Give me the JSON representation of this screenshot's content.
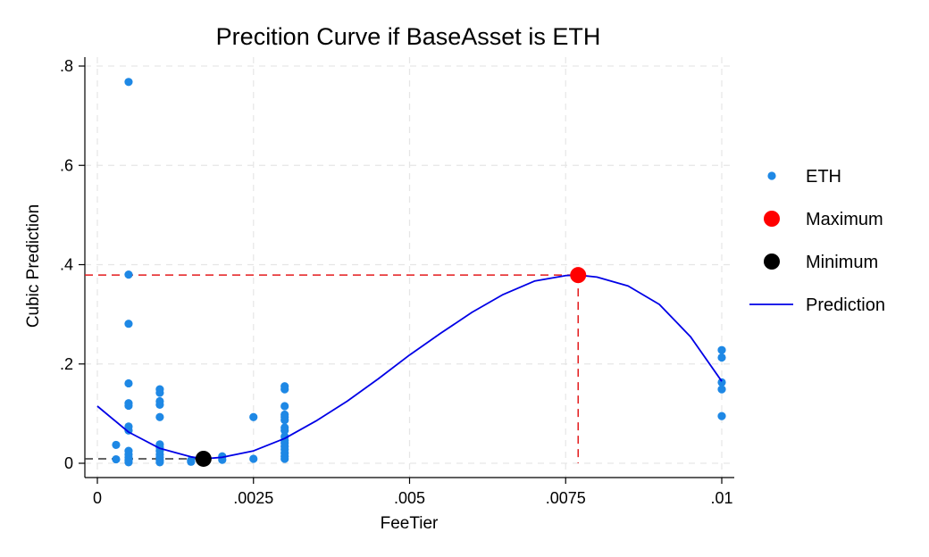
{
  "chart_data": {
    "type": "scatter",
    "title": "Precition Curve if BaseAsset is ETH",
    "xlabel": "FeeTier",
    "ylabel": "Cubic Prediction",
    "xlim": [
      0,
      0.01
    ],
    "ylim": [
      0,
      0.8
    ],
    "x_ticks": [
      0,
      0.0025,
      0.005,
      0.0075,
      0.01
    ],
    "x_tick_labels": [
      "0",
      ".0025",
      ".005",
      ".0075",
      ".01"
    ],
    "y_ticks": [
      0,
      0.2,
      0.4,
      0.6,
      0.8
    ],
    "y_tick_labels": [
      "0",
      ".2",
      ".4",
      ".6",
      ".8"
    ],
    "grid": true,
    "legend_position": "right",
    "series": [
      {
        "name": "ETH",
        "kind": "scatter",
        "color": "#1e88e5",
        "points": [
          [
            0.0003,
            0.037
          ],
          [
            0.0003,
            0.008
          ],
          [
            0.0005,
            0.768
          ],
          [
            0.0005,
            0.38
          ],
          [
            0.0005,
            0.281
          ],
          [
            0.0005,
            0.161
          ],
          [
            0.0005,
            0.121
          ],
          [
            0.0005,
            0.116
          ],
          [
            0.0005,
            0.074
          ],
          [
            0.0005,
            0.066
          ],
          [
            0.0005,
            0.025
          ],
          [
            0.0005,
            0.018
          ],
          [
            0.0005,
            0.012
          ],
          [
            0.0005,
            0.006
          ],
          [
            0.0005,
            0.002
          ],
          [
            0.001,
            0.149
          ],
          [
            0.001,
            0.142
          ],
          [
            0.001,
            0.125
          ],
          [
            0.001,
            0.118
          ],
          [
            0.001,
            0.093
          ],
          [
            0.001,
            0.038
          ],
          [
            0.001,
            0.032
          ],
          [
            0.001,
            0.025
          ],
          [
            0.001,
            0.018
          ],
          [
            0.001,
            0.012
          ],
          [
            0.001,
            0.006
          ],
          [
            0.001,
            0.002
          ],
          [
            0.0015,
            0.006
          ],
          [
            0.0015,
            0.003
          ],
          [
            0.002,
            0.014
          ],
          [
            0.002,
            0.007
          ],
          [
            0.0025,
            0.093
          ],
          [
            0.0025,
            0.009
          ],
          [
            0.003,
            0.155
          ],
          [
            0.003,
            0.149
          ],
          [
            0.003,
            0.115
          ],
          [
            0.003,
            0.098
          ],
          [
            0.003,
            0.093
          ],
          [
            0.003,
            0.087
          ],
          [
            0.003,
            0.072
          ],
          [
            0.003,
            0.066
          ],
          [
            0.003,
            0.054
          ],
          [
            0.003,
            0.046
          ],
          [
            0.003,
            0.041
          ],
          [
            0.003,
            0.034
          ],
          [
            0.003,
            0.028
          ],
          [
            0.003,
            0.021
          ],
          [
            0.003,
            0.014
          ],
          [
            0.003,
            0.009
          ],
          [
            0.01,
            0.228
          ],
          [
            0.01,
            0.213
          ],
          [
            0.01,
            0.163
          ],
          [
            0.01,
            0.149
          ],
          [
            0.01,
            0.095
          ]
        ]
      },
      {
        "name": "Maximum",
        "kind": "marker",
        "color": "#ff0000",
        "points": [
          [
            0.0077,
            0.379
          ]
        ]
      },
      {
        "name": "Minimum",
        "kind": "marker",
        "color": "#000000",
        "points": [
          [
            0.0017,
            0.009
          ]
        ]
      },
      {
        "name": "Prediction",
        "kind": "line",
        "color": "#0000e6",
        "points": [
          [
            0,
            0.115
          ],
          [
            0.0005,
            0.063
          ],
          [
            0.001,
            0.03
          ],
          [
            0.0015,
            0.013
          ],
          [
            0.0017,
            0.009
          ],
          [
            0.002,
            0.012
          ],
          [
            0.0025,
            0.025
          ],
          [
            0.003,
            0.05
          ],
          [
            0.0035,
            0.085
          ],
          [
            0.004,
            0.125
          ],
          [
            0.0045,
            0.17
          ],
          [
            0.005,
            0.218
          ],
          [
            0.0055,
            0.262
          ],
          [
            0.006,
            0.304
          ],
          [
            0.0065,
            0.34
          ],
          [
            0.007,
            0.367
          ],
          [
            0.0075,
            0.378
          ],
          [
            0.0077,
            0.379
          ],
          [
            0.008,
            0.375
          ],
          [
            0.0085,
            0.357
          ],
          [
            0.009,
            0.32
          ],
          [
            0.0095,
            0.255
          ],
          [
            0.01,
            0.165
          ]
        ]
      }
    ],
    "reference_lines": [
      {
        "to": "Maximum",
        "color": "#e31a1c",
        "style": "dashed"
      },
      {
        "to": "Minimum",
        "color": "#333333",
        "style": "dashed"
      }
    ]
  }
}
